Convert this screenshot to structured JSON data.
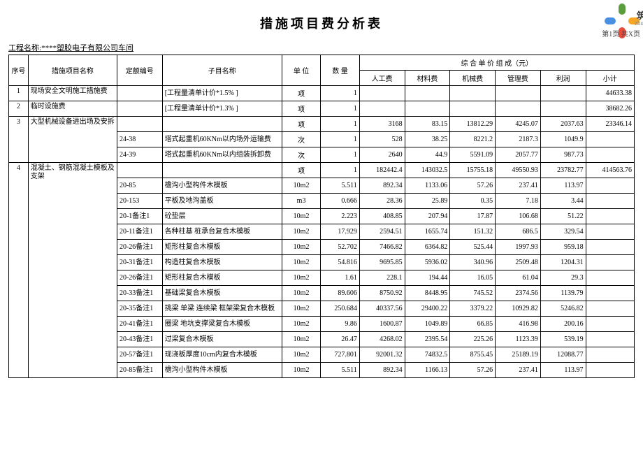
{
  "title": "措施项目费分析表",
  "project_label": "工程名称:",
  "project_name": "****塑胶电子有限公司车间",
  "page_label": "第1页 共X页",
  "logo": {
    "cn": "筑",
    "en": "zhulo",
    "petal_colors": [
      "#5a9e3e",
      "#f5a623",
      "#e74c3c",
      "#4a90e2"
    ]
  },
  "header": {
    "seq": "序号",
    "item": "措施项目名称",
    "code": "定额编号",
    "sub": "子目名称",
    "unit": "单 位",
    "qty": "数 量",
    "comp": "综 合 单 价 组 成（元）",
    "labor": "人工费",
    "material": "材料费",
    "machine": "机械费",
    "mgmt": "管理费",
    "profit": "利润",
    "subtotal": "小计"
  },
  "rows": [
    {
      "seq": "1",
      "item": "现场安全文明施工措施费",
      "code": "",
      "sub": "[工程量清单计价*1.5%  ]",
      "unit": "项",
      "qty": "1",
      "labor": "",
      "mat": "",
      "mach": "",
      "mgmt": "",
      "profit": "",
      "sum": "44633.38"
    },
    {
      "seq": "2",
      "item": "临时设施费",
      "code": "",
      "sub": "[工程量清单计价*1.3%  ]",
      "unit": "项",
      "qty": "1",
      "labor": "",
      "mat": "",
      "mach": "",
      "mgmt": "",
      "profit": "",
      "sum": "38682.26"
    },
    {
      "seq": "3",
      "item": "大型机械设备进出场及安拆",
      "code": "",
      "sub": "",
      "unit": "项",
      "qty": "1",
      "labor": "3168",
      "mat": "83.15",
      "mach": "13812.29",
      "mgmt": "4245.07",
      "profit": "2037.63",
      "sum": "23346.14"
    },
    {
      "seq": "",
      "item": "",
      "code": "24-38",
      "sub": "塔式起重机60KNm以内场外运输费",
      "unit": "次",
      "qty": "1",
      "labor": "528",
      "mat": "38.25",
      "mach": "8221.2",
      "mgmt": "2187.3",
      "profit": "1049.9",
      "sum": ""
    },
    {
      "seq": "",
      "item": "",
      "code": "24-39",
      "sub": "塔式起重机60KNm以内组装拆卸费",
      "unit": "次",
      "qty": "1",
      "labor": "2640",
      "mat": "44.9",
      "mach": "5591.09",
      "mgmt": "2057.77",
      "profit": "987.73",
      "sum": ""
    },
    {
      "seq": "4",
      "item": "混凝土、钢筋混凝土模板及支架",
      "code": "",
      "sub": "",
      "unit": "项",
      "qty": "1",
      "labor": "182442.4",
      "mat": "143032.5",
      "mach": "15755.18",
      "mgmt": "49550.93",
      "profit": "23782.77",
      "sum": "414563.76"
    },
    {
      "seq": "",
      "item": "",
      "code": "20-85",
      "sub": "檐沟小型构件木模板",
      "unit": "10m2",
      "qty": "5.511",
      "labor": "892.34",
      "mat": "1133.06",
      "mach": "57.26",
      "mgmt": "237.41",
      "profit": "113.97",
      "sum": ""
    },
    {
      "seq": "",
      "item": "",
      "code": "20-153",
      "sub": "平板及地沟盖板",
      "unit": "m3",
      "qty": "0.666",
      "labor": "28.36",
      "mat": "25.89",
      "mach": "0.35",
      "mgmt": "7.18",
      "profit": "3.44",
      "sum": ""
    },
    {
      "seq": "",
      "item": "",
      "code": "20-1备注1",
      "sub": "砼垫层",
      "unit": "10m2",
      "qty": "2.223",
      "labor": "408.85",
      "mat": "207.94",
      "mach": "17.87",
      "mgmt": "106.68",
      "profit": "51.22",
      "sum": ""
    },
    {
      "seq": "",
      "item": "",
      "code": "20-11备注1",
      "sub": "各种柱基 桩承台复合木模板",
      "unit": "10m2",
      "qty": "17.929",
      "labor": "2594.51",
      "mat": "1655.74",
      "mach": "151.32",
      "mgmt": "686.5",
      "profit": "329.54",
      "sum": ""
    },
    {
      "seq": "",
      "item": "",
      "code": "20-26备注1",
      "sub": "矩形柱复合木模板",
      "unit": "10m2",
      "qty": "52.702",
      "labor": "7466.82",
      "mat": "6364.82",
      "mach": "525.44",
      "mgmt": "1997.93",
      "profit": "959.18",
      "sum": ""
    },
    {
      "seq": "",
      "item": "",
      "code": "20-31备注1",
      "sub": "构造柱复合木模板",
      "unit": "10m2",
      "qty": "54.816",
      "labor": "9695.85",
      "mat": "5936.02",
      "mach": "340.96",
      "mgmt": "2509.48",
      "profit": "1204.31",
      "sum": ""
    },
    {
      "seq": "",
      "item": "",
      "code": "20-26备注1",
      "sub": "矩形柱复合木模板",
      "unit": "10m2",
      "qty": "1.61",
      "labor": "228.1",
      "mat": "194.44",
      "mach": "16.05",
      "mgmt": "61.04",
      "profit": "29.3",
      "sum": ""
    },
    {
      "seq": "",
      "item": "",
      "code": "20-33备注1",
      "sub": "基础梁复合木模板",
      "unit": "10m2",
      "qty": "89.606",
      "labor": "8750.92",
      "mat": "8448.95",
      "mach": "745.52",
      "mgmt": "2374.56",
      "profit": "1139.79",
      "sum": ""
    },
    {
      "seq": "",
      "item": "",
      "code": "20-35备注1",
      "sub": "挑梁 单梁 连续梁 框架梁复合木模板",
      "unit": "10m2",
      "qty": "250.684",
      "labor": "40337.56",
      "mat": "29400.22",
      "mach": "3379.22",
      "mgmt": "10929.82",
      "profit": "5246.82",
      "sum": ""
    },
    {
      "seq": "",
      "item": "",
      "code": "20-41备注1",
      "sub": "圈梁 地坑支撑梁复合木模板",
      "unit": "10m2",
      "qty": "9.86",
      "labor": "1600.87",
      "mat": "1049.89",
      "mach": "66.85",
      "mgmt": "416.98",
      "profit": "200.16",
      "sum": ""
    },
    {
      "seq": "",
      "item": "",
      "code": "20-43备注1",
      "sub": "过梁复合木模板",
      "unit": "10m2",
      "qty": "26.47",
      "labor": "4268.02",
      "mat": "2395.54",
      "mach": "225.26",
      "mgmt": "1123.39",
      "profit": "539.19",
      "sum": ""
    },
    {
      "seq": "",
      "item": "",
      "code": "20-57备注1",
      "sub": "现浇板厚度10cm内复合木模板",
      "unit": "10m2",
      "qty": "727.801",
      "labor": "92001.32",
      "mat": "74832.5",
      "mach": "8755.45",
      "mgmt": "25189.19",
      "profit": "12088.77",
      "sum": ""
    },
    {
      "seq": "",
      "item": "",
      "code": "20-85备注1",
      "sub": "檐沟小型构件木模板",
      "unit": "10m2",
      "qty": "5.511",
      "labor": "892.34",
      "mat": "1166.13",
      "mach": "57.26",
      "mgmt": "237.41",
      "profit": "113.97",
      "sum": ""
    }
  ]
}
